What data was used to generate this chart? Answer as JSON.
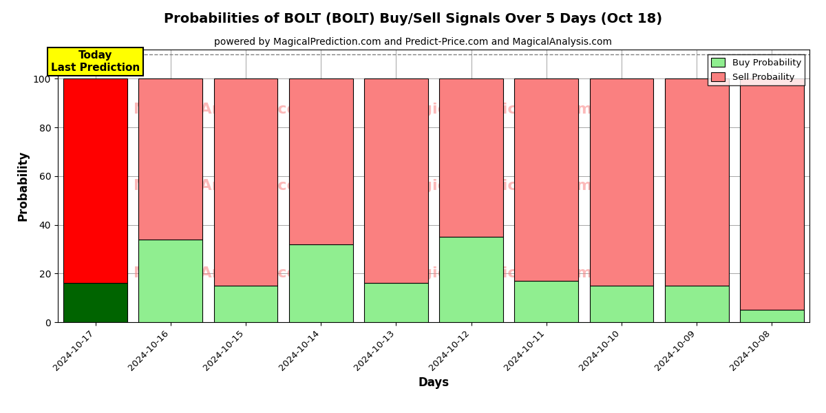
{
  "title": "Probabilities of BOLT (BOLT) Buy/Sell Signals Over 5 Days (Oct 18)",
  "subtitle": "powered by MagicalPrediction.com and Predict-Price.com and MagicalAnalysis.com",
  "xlabel": "Days",
  "ylabel": "Probability",
  "dates": [
    "2024-10-17",
    "2024-10-16",
    "2024-10-15",
    "2024-10-14",
    "2024-10-13",
    "2024-10-12",
    "2024-10-11",
    "2024-10-10",
    "2024-10-09",
    "2024-10-08"
  ],
  "buy_values": [
    16,
    34,
    15,
    32,
    16,
    35,
    17,
    15,
    15,
    5
  ],
  "sell_values": [
    84,
    66,
    85,
    68,
    84,
    65,
    83,
    85,
    85,
    95
  ],
  "today_buy_color": "#006400",
  "today_sell_color": "#FF0000",
  "buy_color": "#90EE90",
  "sell_color": "#FA8080",
  "bar_edge_color": "#000000",
  "ylim": [
    0,
    112
  ],
  "dashed_line_y": 110,
  "watermark_texts": [
    "MagicalAnalysis.com",
    "MagicalPrediction.com"
  ],
  "today_label": "Today\nLast Prediction",
  "legend_buy": "Buy Probability",
  "legend_sell": "Sell Probaility",
  "figsize": [
    12,
    6
  ],
  "dpi": 100
}
